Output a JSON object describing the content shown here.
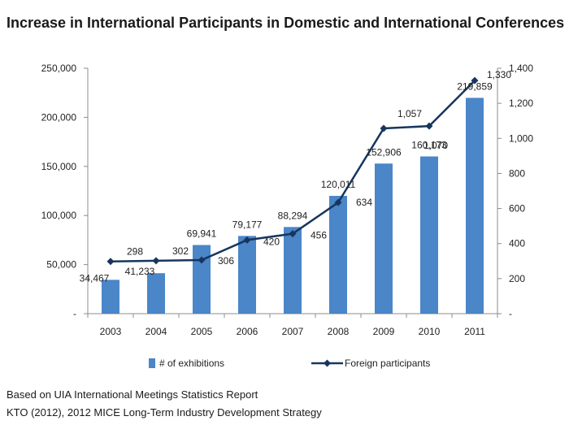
{
  "chart_data": {
    "type": "bar+line",
    "title": "Increase in International Participants in Domestic and International Conferences",
    "categories": [
      "2003",
      "2004",
      "2005",
      "2006",
      "2007",
      "2008",
      "2009",
      "2010",
      "2011"
    ],
    "series": [
      {
        "name": "# of exhibitions",
        "type": "bar",
        "axis": "left",
        "values": [
          34467,
          41233,
          69941,
          79177,
          88294,
          120011,
          152906,
          160173,
          219859
        ],
        "labels": [
          "34,467",
          "41,233",
          "69,941",
          "79,177",
          "88,294",
          "120,011",
          "152,906",
          "160,173",
          "219,859"
        ],
        "color": "#4a86c8"
      },
      {
        "name": "Foreign participants",
        "type": "line",
        "axis": "right",
        "values": [
          298,
          302,
          306,
          420,
          456,
          634,
          1057,
          1070,
          1330
        ],
        "labels": [
          "298",
          "302",
          "306",
          "420",
          "456",
          "634",
          "1,057",
          "1,070",
          "1,330"
        ],
        "color": "#17365d"
      }
    ],
    "y_left": {
      "range": [
        0,
        250000
      ],
      "ticks": [
        0,
        50000,
        100000,
        150000,
        200000,
        250000
      ],
      "tick_labels": [
        "-",
        "50,000",
        "100,000",
        "150,000",
        "200,000",
        "250,000"
      ]
    },
    "y_right": {
      "range": [
        0,
        1400
      ],
      "ticks": [
        0,
        200,
        400,
        600,
        800,
        1000,
        1200,
        1400
      ],
      "tick_labels": [
        "-",
        "200",
        "400",
        "600",
        "800",
        "1,000",
        "1,200",
        "1,400"
      ]
    },
    "xlabel": "",
    "grid": false,
    "legend_position": "bottom"
  },
  "source": {
    "line1": "Based on UIA International Meetings Statistics Report",
    "line2": "KTO (2012), 2012 MICE Long-Term Industry Development Strategy"
  }
}
